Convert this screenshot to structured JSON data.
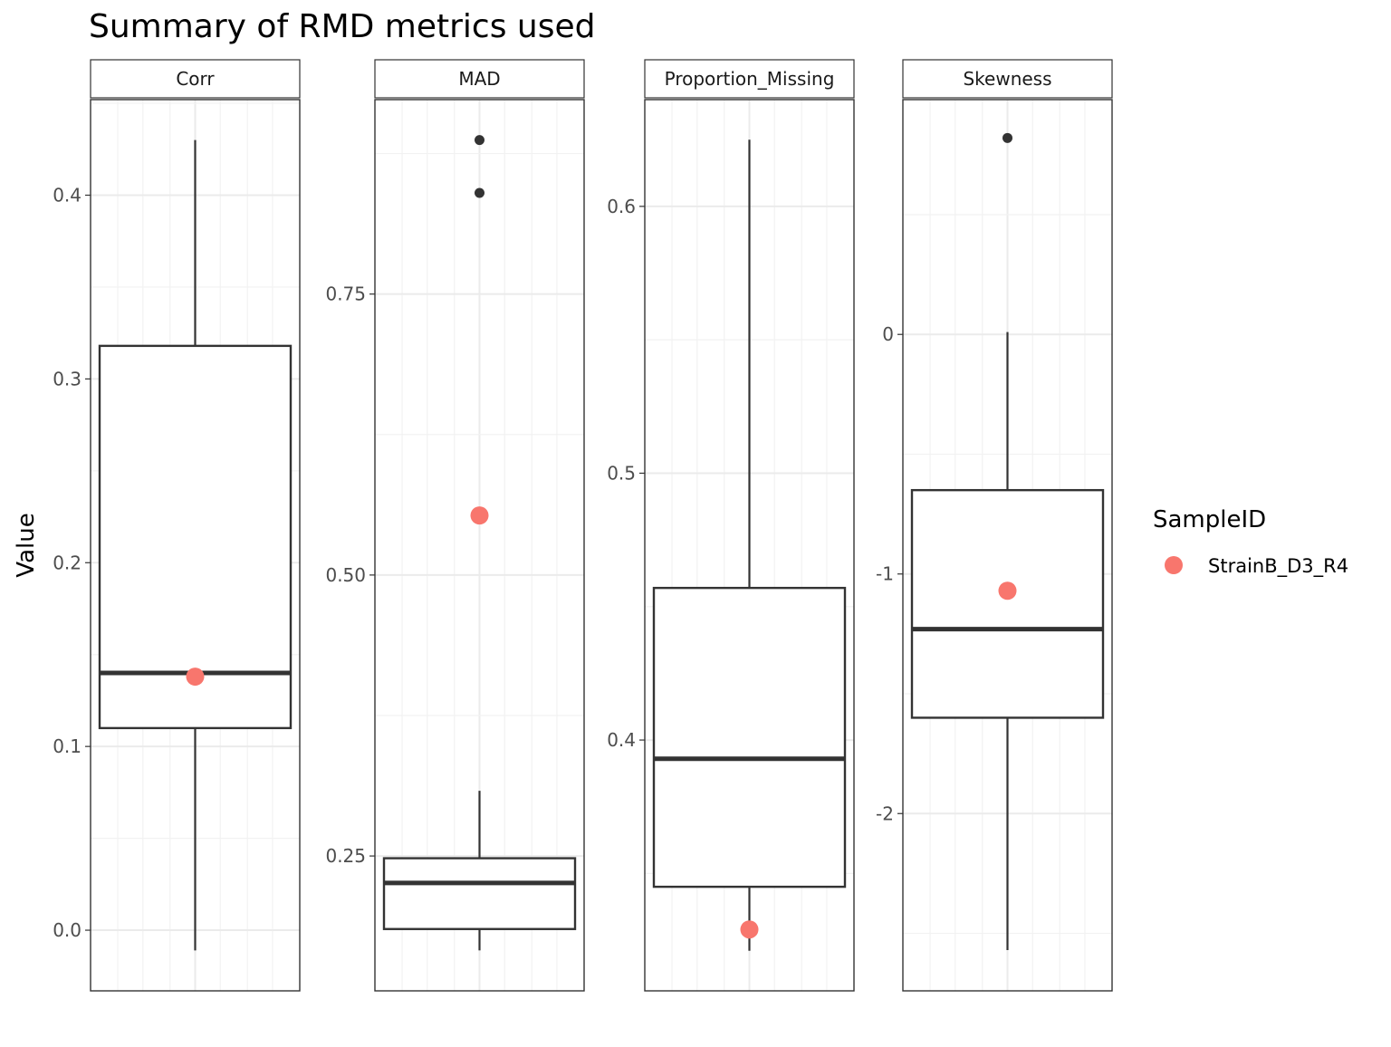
{
  "chart_data": {
    "type": "boxplot",
    "title": "Summary of RMD metrics used",
    "ylabel": "Value",
    "xlabel": "",
    "grid": true,
    "legend": {
      "title": "SampleID",
      "placement": "right",
      "entries": [
        {
          "label": "StrainB_D3_R4",
          "color": "#F8766D"
        }
      ]
    },
    "colors": {
      "box_stroke": "#333333",
      "outlier": "#333333",
      "sample_point": "#F8766D",
      "grid_major": "#ebebeb",
      "grid_minor": "#f2f2f2",
      "strip_fill": "#ffffff",
      "panel_border": "#333333",
      "tick_label": "#4d4d4d"
    },
    "facets": [
      {
        "name": "Corr",
        "ylim": [
          -0.033,
          0.452
        ],
        "ticks": [
          0.0,
          0.1,
          0.2,
          0.3,
          0.4
        ],
        "tick_labels": [
          "0.0",
          "0.1",
          "0.2",
          "0.3",
          "0.4"
        ],
        "box": {
          "lower_whisker": -0.011,
          "q1": 0.11,
          "median": 0.14,
          "q3": 0.318,
          "upper_whisker": 0.43
        },
        "outliers": [],
        "sample_value": 0.138
      },
      {
        "name": "MAD",
        "ylim": [
          0.13,
          0.923
        ],
        "ticks": [
          0.25,
          0.5,
          0.75
        ],
        "tick_labels": [
          "0.25",
          "0.50",
          "0.75"
        ],
        "box": {
          "lower_whisker": 0.166,
          "q1": 0.185,
          "median": 0.226,
          "q3": 0.248,
          "upper_whisker": 0.308
        },
        "outliers": [
          0.887,
          0.84
        ],
        "sample_value": 0.553
      },
      {
        "name": "Proportion_Missing",
        "ylim": [
          0.306,
          0.64
        ],
        "ticks": [
          0.4,
          0.5,
          0.6
        ],
        "tick_labels": [
          "0.4",
          "0.5",
          "0.6"
        ],
        "box": {
          "lower_whisker": 0.321,
          "q1": 0.345,
          "median": 0.393,
          "q3": 0.457,
          "upper_whisker": 0.625
        },
        "outliers": [],
        "sample_value": 0.329
      },
      {
        "name": "Skewness",
        "ylim": [
          -2.74,
          0.98
        ],
        "ticks": [
          -2,
          -1,
          0
        ],
        "tick_labels": [
          "-2",
          "-1",
          "0"
        ],
        "box": {
          "lower_whisker": -2.57,
          "q1": -1.6,
          "median": -1.23,
          "q3": -0.65,
          "upper_whisker": 0.01
        },
        "outliers": [
          0.82
        ],
        "sample_value": -1.07
      }
    ]
  }
}
